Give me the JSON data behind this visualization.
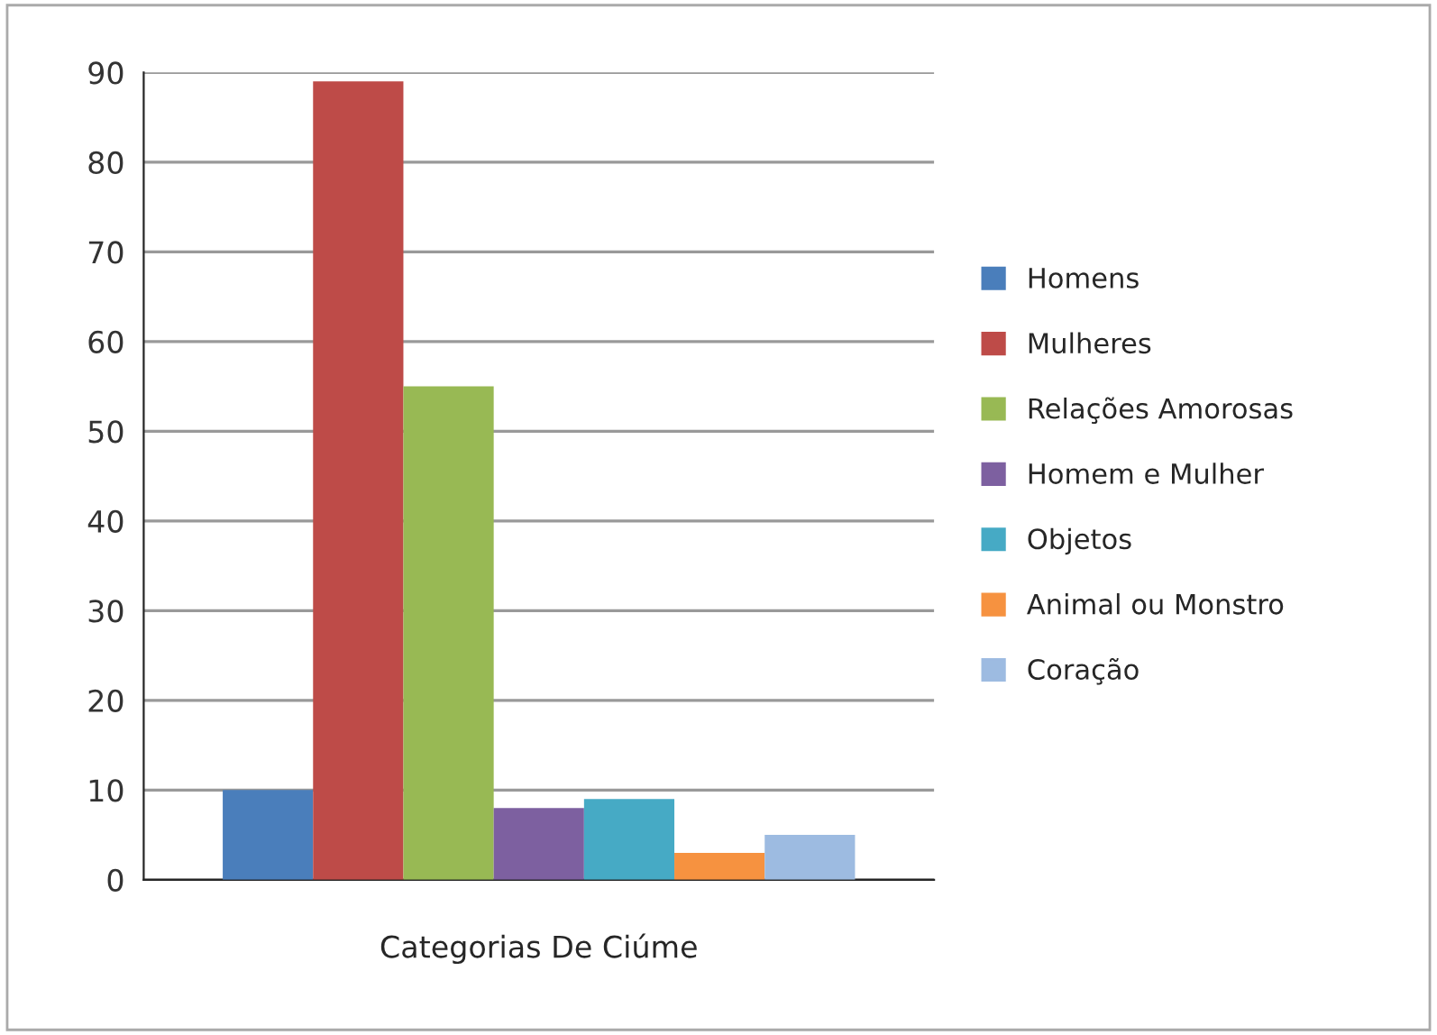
{
  "chart_data": {
    "type": "bar",
    "xlabel": "Categorias De Ciúme",
    "categories": [
      null
    ],
    "series": [
      {
        "name": "Homens",
        "color": "#4a7ebb",
        "values": [
          10
        ]
      },
      {
        "name": "Mulheres",
        "color": "#be4b48",
        "values": [
          89
        ]
      },
      {
        "name": "Relações Amorosas",
        "color": "#98b954",
        "values": [
          55
        ]
      },
      {
        "name": "Homem e Mulher",
        "color": "#7d60a0",
        "values": [
          8
        ]
      },
      {
        "name": "Objetos",
        "color": "#46aac5",
        "values": [
          9
        ]
      },
      {
        "name": "Animal ou Monstro",
        "color": "#f69240",
        "values": [
          3
        ]
      },
      {
        "name": "Coração",
        "color": "#9dbbe1",
        "values": [
          5
        ]
      }
    ],
    "ylim": [
      0,
      90
    ],
    "yticks": [
      0,
      10,
      20,
      30,
      40,
      50,
      60,
      70,
      80,
      90
    ],
    "grid": "y",
    "legend": "right"
  }
}
